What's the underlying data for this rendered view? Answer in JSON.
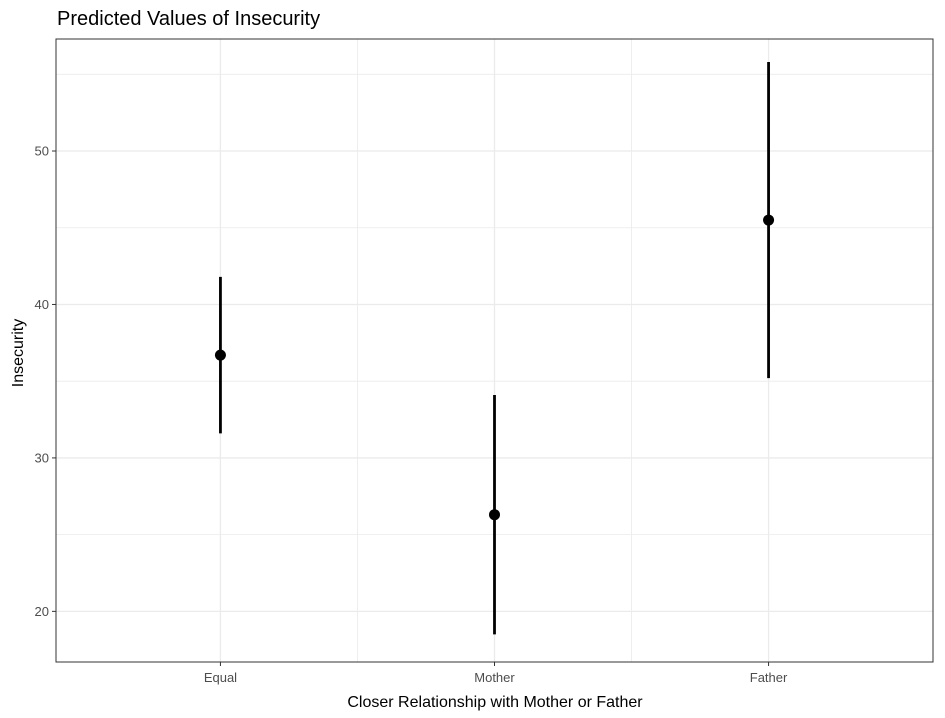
{
  "chart_data": {
    "type": "scatter",
    "title": "Predicted Values of Insecurity",
    "xlabel": "Closer Relationship with Mother or Father",
    "ylabel": "Insecurity",
    "categories": [
      "Equal",
      "Mother",
      "Father"
    ],
    "series": [
      {
        "values": [
          36.7,
          26.3,
          45.5
        ],
        "ci_low": [
          31.6,
          18.5,
          35.2
        ],
        "ci_high": [
          41.8,
          34.1,
          55.8
        ]
      }
    ],
    "ylim": [
      16.7,
      57.3
    ],
    "y_ticks": [
      20,
      30,
      40,
      50
    ],
    "y_tick_labels": [
      "20",
      "30",
      "40",
      "50"
    ],
    "grid": true,
    "legend": "none",
    "colors": {
      "point": "#000000",
      "errorbar": "#000000",
      "grid": "#ebebeb",
      "panel_border": "#333333",
      "tick_label": "#4d4d4d"
    }
  }
}
